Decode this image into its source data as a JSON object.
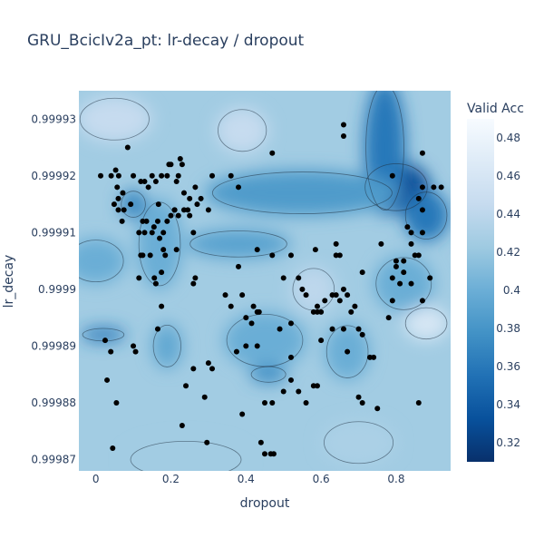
{
  "chart_data": {
    "type": "contour",
    "title": "GRU_BcicIv2a_pt: lr-decay / dropout",
    "xlabel": "dropout",
    "ylabel": "lr_decay",
    "xlim": [
      -0.045,
      0.945
    ],
    "ylim": [
      0.999868,
      0.999935
    ],
    "x_ticks": [
      {
        "value": 0,
        "label": "0"
      },
      {
        "value": 0.2,
        "label": "0.2"
      },
      {
        "value": 0.4,
        "label": "0.4"
      },
      {
        "value": 0.6,
        "label": "0.6"
      },
      {
        "value": 0.8,
        "label": "0.8"
      }
    ],
    "y_ticks": [
      {
        "value": 0.99987,
        "label": "0.99987"
      },
      {
        "value": 0.99988,
        "label": "0.99988"
      },
      {
        "value": 0.99989,
        "label": "0.99989"
      },
      {
        "value": 0.9999,
        "label": "0.9999"
      },
      {
        "value": 0.99991,
        "label": "0.99991"
      },
      {
        "value": 0.99992,
        "label": "0.99992"
      },
      {
        "value": 0.99993,
        "label": "0.99993"
      }
    ],
    "colorbar": {
      "title": "Valid Acc",
      "range": [
        0.31,
        0.49
      ],
      "ticks": [
        0.32,
        0.34,
        0.36,
        0.38,
        0.4,
        0.42,
        0.44,
        0.46,
        0.48
      ],
      "tick_labels": [
        "0.32",
        "0.34",
        "0.36",
        "0.38",
        "0.4",
        "0.42",
        "0.44",
        "0.46",
        "0.48"
      ],
      "colorscale": [
        "#08306b",
        "#08519c",
        "#2171b5",
        "#4292c6",
        "#6baed6",
        "#9ecae1",
        "#c6dbef",
        "#deebf7",
        "#f7fbff"
      ]
    },
    "background_value": 0.425,
    "regions": [
      {
        "x": 0.8,
        "y": 0.999918,
        "rx": 0.09,
        "ry": 4.5e-06,
        "value": 0.33
      },
      {
        "x": 0.77,
        "y": 0.999925,
        "rx": 0.055,
        "ry": 1.2e-05,
        "value": 0.36
      },
      {
        "x": 0.88,
        "y": 0.999913,
        "rx": 0.06,
        "ry": 4.5e-06,
        "value": 0.36
      },
      {
        "x": 0.55,
        "y": 0.999917,
        "rx": 0.26,
        "ry": 4e-06,
        "value": 0.385
      },
      {
        "x": 0.38,
        "y": 0.999908,
        "rx": 0.14,
        "ry": 2.5e-06,
        "value": 0.39
      },
      {
        "x": 0.45,
        "y": 0.999891,
        "rx": 0.11,
        "ry": 5e-06,
        "value": 0.4
      },
      {
        "x": 0.46,
        "y": 0.999885,
        "rx": 0.05,
        "ry": 1.5e-06,
        "value": 0.375
      },
      {
        "x": 0.02,
        "y": 0.999892,
        "rx": 0.06,
        "ry": 1.2e-06,
        "value": 0.36
      },
      {
        "x": 0.17,
        "y": 0.999908,
        "rx": 0.06,
        "ry": 8e-06,
        "value": 0.4
      },
      {
        "x": 0.1,
        "y": 0.999915,
        "rx": 0.035,
        "ry": 2.5e-06,
        "value": 0.37
      },
      {
        "x": 0.19,
        "y": 0.99989,
        "rx": 0.04,
        "ry": 4e-06,
        "value": 0.395
      },
      {
        "x": 0.82,
        "y": 0.999901,
        "rx": 0.08,
        "ry": 5e-06,
        "value": 0.4
      },
      {
        "x": 0.67,
        "y": 0.999889,
        "rx": 0.06,
        "ry": 5e-06,
        "value": 0.4
      },
      {
        "x": 0.0,
        "y": 0.999905,
        "rx": 0.08,
        "ry": 4e-06,
        "value": 0.4
      },
      {
        "x": 0.88,
        "y": 0.999894,
        "rx": 0.06,
        "ry": 3e-06,
        "value": 0.46
      },
      {
        "x": 0.05,
        "y": 0.99993,
        "rx": 0.1,
        "ry": 4e-06,
        "value": 0.445
      },
      {
        "x": 0.39,
        "y": 0.999928,
        "rx": 0.07,
        "ry": 4e-06,
        "value": 0.445
      },
      {
        "x": 0.58,
        "y": 0.9999,
        "rx": 0.06,
        "ry": 4e-06,
        "value": 0.44
      },
      {
        "x": 0.7,
        "y": 0.999873,
        "rx": 0.1,
        "ry": 4e-06,
        "value": 0.43
      },
      {
        "x": 0.24,
        "y": 0.99987,
        "rx": 0.16,
        "ry": 3.5e-06,
        "value": 0.425
      }
    ],
    "points": [
      [
        0.013,
        0.99992
      ],
      [
        0.041,
        0.99992
      ],
      [
        0.053,
        0.999921
      ],
      [
        0.061,
        0.99992
      ],
      [
        0.085,
        0.999925
      ],
      [
        0.057,
        0.999918
      ],
      [
        0.06,
        0.999916
      ],
      [
        0.049,
        0.999915
      ],
      [
        0.072,
        0.999917
      ],
      [
        0.093,
        0.999915
      ],
      [
        0.1,
        0.99992
      ],
      [
        0.12,
        0.999919
      ],
      [
        0.13,
        0.999919
      ],
      [
        0.15,
        0.99992
      ],
      [
        0.14,
        0.999918
      ],
      [
        0.16,
        0.999919
      ],
      [
        0.167,
        0.999915
      ],
      [
        0.175,
        0.99992
      ],
      [
        0.195,
        0.999922
      ],
      [
        0.19,
        0.99992
      ],
      [
        0.2,
        0.999922
      ],
      [
        0.225,
        0.999923
      ],
      [
        0.23,
        0.999922
      ],
      [
        0.22,
        0.99992
      ],
      [
        0.215,
        0.999919
      ],
      [
        0.235,
        0.999917
      ],
      [
        0.25,
        0.999916
      ],
      [
        0.245,
        0.999914
      ],
      [
        0.27,
        0.999915
      ],
      [
        0.28,
        0.999916
      ],
      [
        0.21,
        0.999914
      ],
      [
        0.2,
        0.999913
      ],
      [
        0.19,
        0.999912
      ],
      [
        0.165,
        0.999912
      ],
      [
        0.155,
        0.999911
      ],
      [
        0.18,
        0.99991
      ],
      [
        0.135,
        0.999912
      ],
      [
        0.125,
        0.999912
      ],
      [
        0.115,
        0.99991
      ],
      [
        0.13,
        0.99991
      ],
      [
        0.125,
        0.999906
      ],
      [
        0.15,
        0.99991
      ],
      [
        0.17,
        0.999909
      ],
      [
        0.18,
        0.999907
      ],
      [
        0.21,
        0.999914
      ],
      [
        0.22,
        0.999913
      ],
      [
        0.235,
        0.999914
      ],
      [
        0.26,
        0.99991
      ],
      [
        0.25,
        0.999913
      ],
      [
        0.3,
        0.999914
      ],
      [
        0.31,
        0.99992
      ],
      [
        0.265,
        0.999918
      ],
      [
        0.075,
        0.999914
      ],
      [
        0.06,
        0.999914
      ],
      [
        0.07,
        0.999912
      ],
      [
        0.185,
        0.999906
      ],
      [
        0.175,
        0.999903
      ],
      [
        0.215,
        0.999907
      ],
      [
        0.265,
        0.999902
      ],
      [
        0.26,
        0.999901
      ],
      [
        0.145,
        0.999906
      ],
      [
        0.12,
        0.999906
      ],
      [
        0.115,
        0.999902
      ],
      [
        0.16,
        0.999901
      ],
      [
        0.156,
        0.999902
      ],
      [
        0.175,
        0.999897
      ],
      [
        0.165,
        0.999893
      ],
      [
        0.1,
        0.99989
      ],
      [
        0.106,
        0.999889
      ],
      [
        0.025,
        0.999891
      ],
      [
        0.04,
        0.999889
      ],
      [
        0.03,
        0.999884
      ],
      [
        0.055,
        0.99988
      ],
      [
        0.045,
        0.999872
      ],
      [
        0.26,
        0.999886
      ],
      [
        0.24,
        0.999883
      ],
      [
        0.3,
        0.999887
      ],
      [
        0.31,
        0.999886
      ],
      [
        0.29,
        0.999881
      ],
      [
        0.23,
        0.999876
      ],
      [
        0.296,
        0.999873
      ],
      [
        0.39,
        0.999878
      ],
      [
        0.4,
        0.99989
      ],
      [
        0.375,
        0.999889
      ],
      [
        0.44,
        0.999873
      ],
      [
        0.45,
        0.999871
      ],
      [
        0.466,
        0.999871
      ],
      [
        0.474,
        0.999871
      ],
      [
        0.45,
        0.99988
      ],
      [
        0.47,
        0.99988
      ],
      [
        0.52,
        0.999884
      ],
      [
        0.54,
        0.999882
      ],
      [
        0.5,
        0.999882
      ],
      [
        0.56,
        0.99988
      ],
      [
        0.58,
        0.999883
      ],
      [
        0.59,
        0.999883
      ],
      [
        0.52,
        0.999888
      ],
      [
        0.49,
        0.999893
      ],
      [
        0.52,
        0.999894
      ],
      [
        0.43,
        0.99989
      ],
      [
        0.4,
        0.999895
      ],
      [
        0.415,
        0.999894
      ],
      [
        0.42,
        0.999897
      ],
      [
        0.43,
        0.999896
      ],
      [
        0.435,
        0.999896
      ],
      [
        0.345,
        0.999899
      ],
      [
        0.36,
        0.999897
      ],
      [
        0.39,
        0.999899
      ],
      [
        0.38,
        0.999904
      ],
      [
        0.43,
        0.999907
      ],
      [
        0.47,
        0.999906
      ],
      [
        0.5,
        0.999902
      ],
      [
        0.52,
        0.999906
      ],
      [
        0.54,
        0.999902
      ],
      [
        0.585,
        0.999907
      ],
      [
        0.64,
        0.999908
      ],
      [
        0.55,
        0.9999
      ],
      [
        0.56,
        0.999899
      ],
      [
        0.59,
        0.999897
      ],
      [
        0.59,
        0.999896
      ],
      [
        0.6,
        0.999896
      ],
      [
        0.63,
        0.999899
      ],
      [
        0.64,
        0.999899
      ],
      [
        0.65,
        0.999898
      ],
      [
        0.66,
        0.9999
      ],
      [
        0.67,
        0.999899
      ],
      [
        0.68,
        0.999896
      ],
      [
        0.69,
        0.999897
      ],
      [
        0.7,
        0.999893
      ],
      [
        0.71,
        0.999892
      ],
      [
        0.73,
        0.999888
      ],
      [
        0.74,
        0.999888
      ],
      [
        0.66,
        0.999893
      ],
      [
        0.67,
        0.999889
      ],
      [
        0.63,
        0.999893
      ],
      [
        0.6,
        0.999891
      ],
      [
        0.58,
        0.999896
      ],
      [
        0.7,
        0.999881
      ],
      [
        0.71,
        0.99988
      ],
      [
        0.75,
        0.999879
      ],
      [
        0.78,
        0.999895
      ],
      [
        0.79,
        0.999898
      ],
      [
        0.79,
        0.999902
      ],
      [
        0.8,
        0.999905
      ],
      [
        0.8,
        0.999904
      ],
      [
        0.82,
        0.999903
      ],
      [
        0.84,
        0.999901
      ],
      [
        0.81,
        0.999901
      ],
      [
        0.82,
        0.999905
      ],
      [
        0.83,
        0.999911
      ],
      [
        0.84,
        0.99991
      ],
      [
        0.84,
        0.999908
      ],
      [
        0.85,
        0.999906
      ],
      [
        0.86,
        0.999906
      ],
      [
        0.87,
        0.99991
      ],
      [
        0.87,
        0.999914
      ],
      [
        0.87,
        0.999918
      ],
      [
        0.86,
        0.999916
      ],
      [
        0.9,
        0.999918
      ],
      [
        0.87,
        0.999924
      ],
      [
        0.79,
        0.99992
      ],
      [
        0.76,
        0.999908
      ],
      [
        0.66,
        0.999927
      ],
      [
        0.66,
        0.999929
      ],
      [
        0.65,
        0.999906
      ],
      [
        0.71,
        0.999903
      ],
      [
        0.61,
        0.999898
      ],
      [
        0.64,
        0.999906
      ],
      [
        0.38,
        0.999918
      ],
      [
        0.47,
        0.999924
      ],
      [
        0.36,
        0.99992
      ],
      [
        0.87,
        0.999898
      ],
      [
        0.86,
        0.99988
      ],
      [
        0.89,
        0.999902
      ],
      [
        0.92,
        0.999918
      ]
    ]
  }
}
